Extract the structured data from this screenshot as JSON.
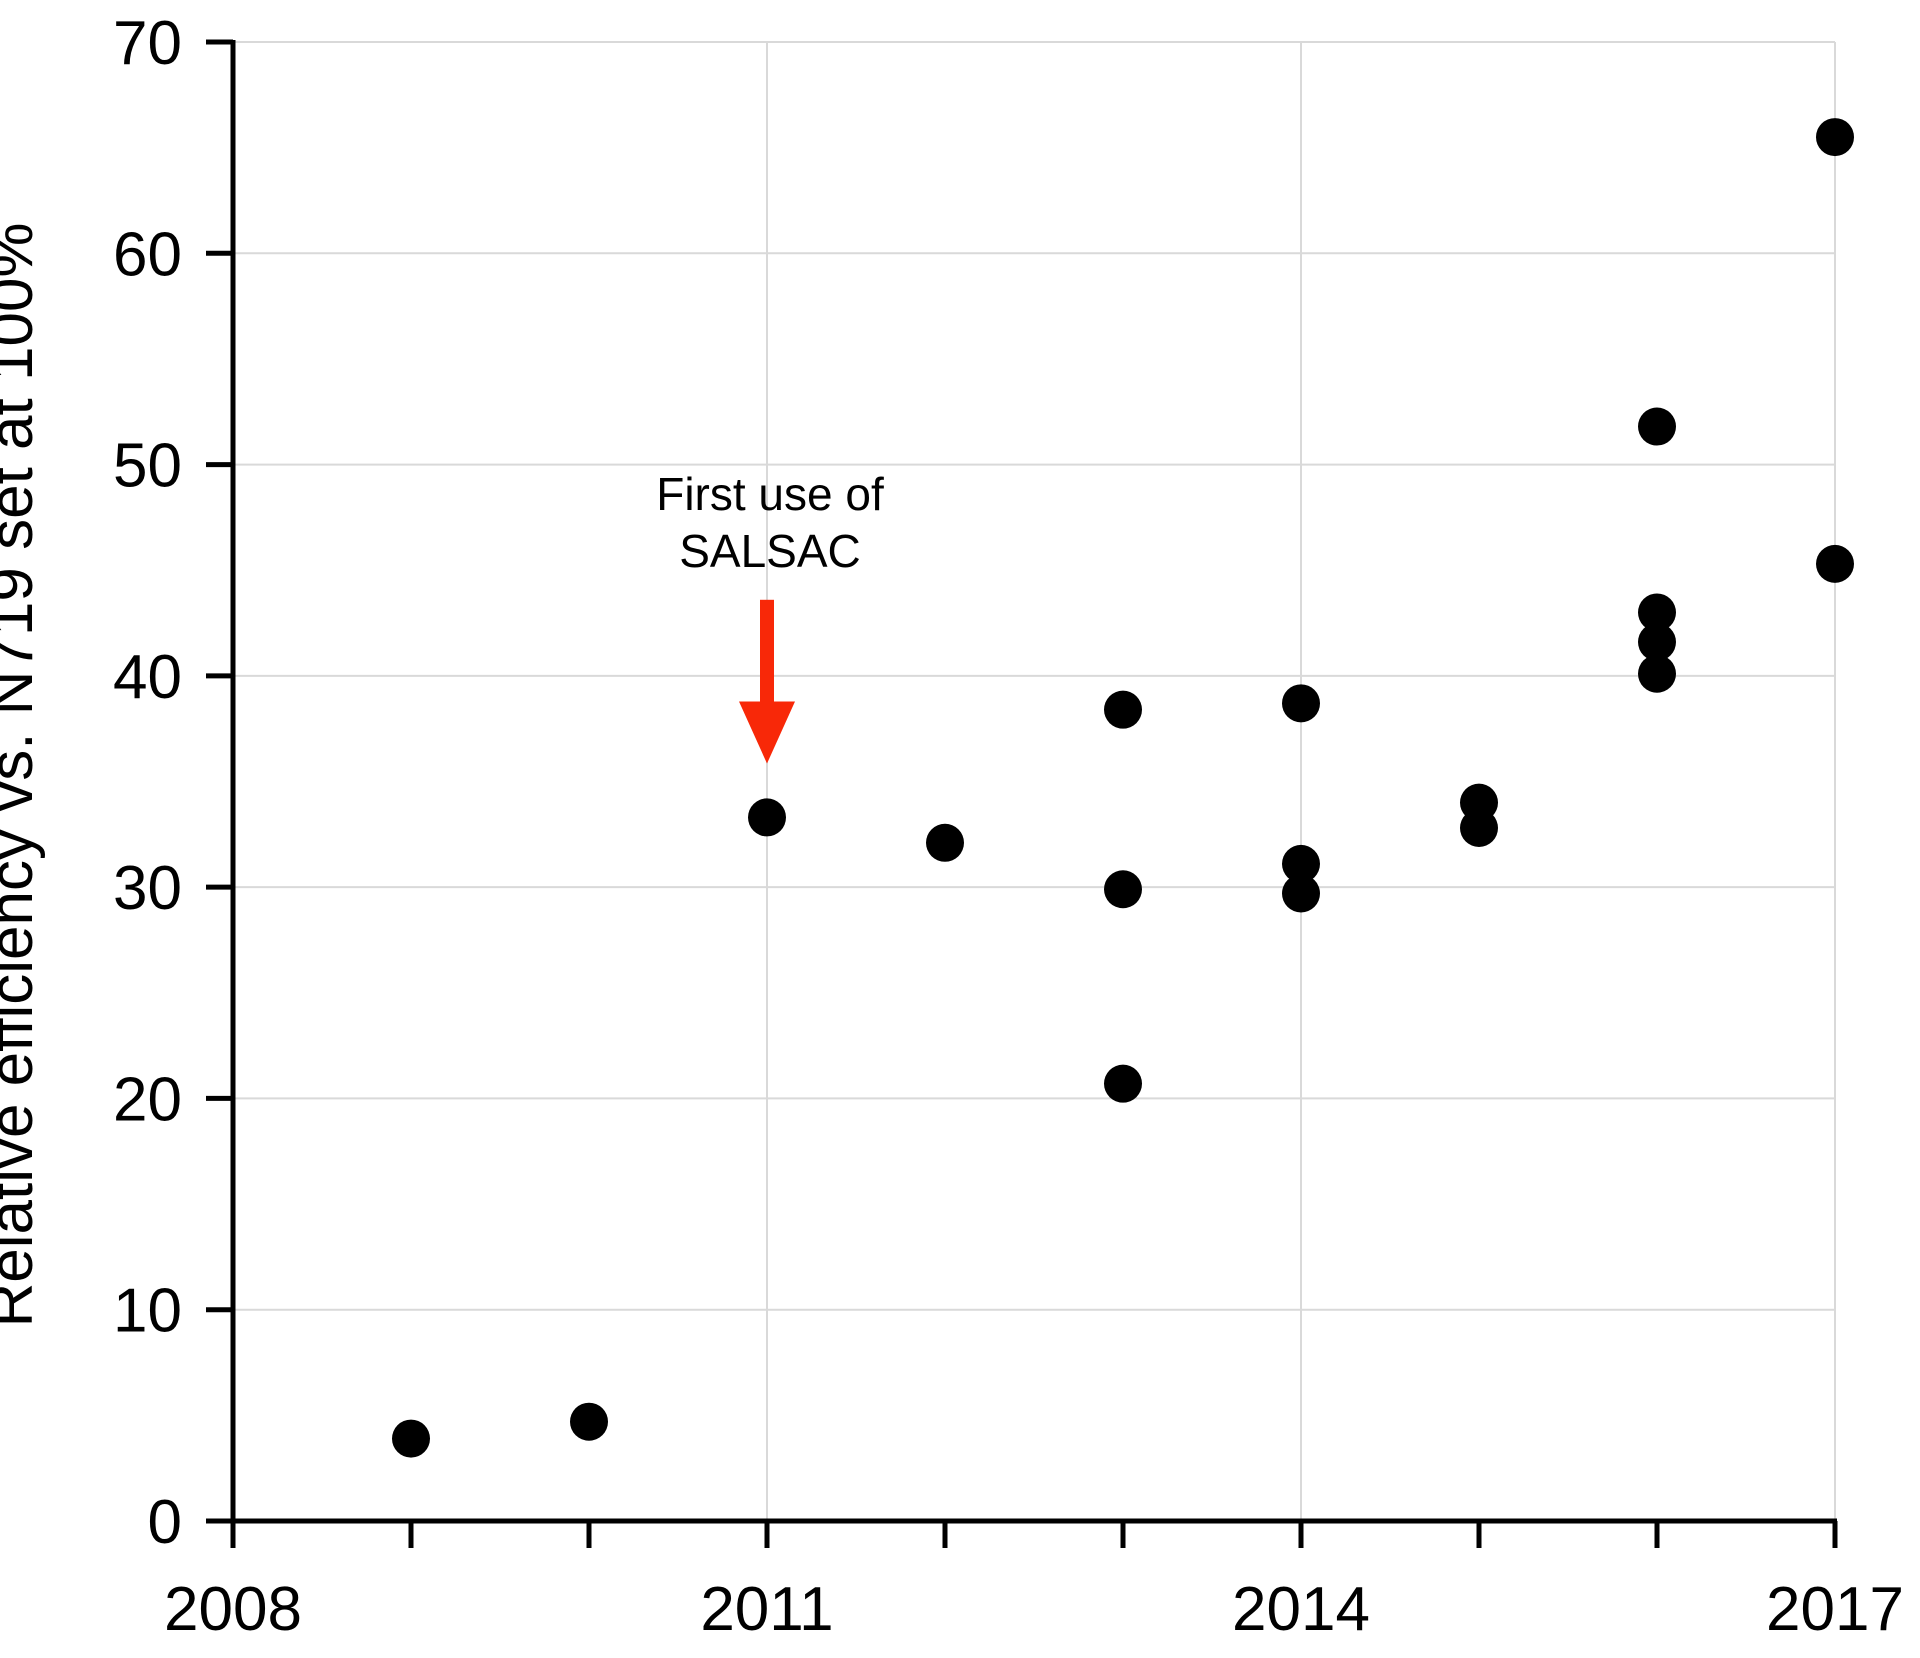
{
  "colors": {
    "background": "#ffffff",
    "grid": "#d9d9d9",
    "axis": "#000000",
    "point": "#000000",
    "annotation_red": "#f82808"
  },
  "chart_data": {
    "type": "scatter",
    "title": "",
    "xlabel": "",
    "ylabel": "Relative efficiency vs. N719 set at 100%",
    "xlim": [
      2008,
      2017
    ],
    "ylim": [
      0,
      70
    ],
    "grid": true,
    "legend": "none",
    "x_ticks": [
      2008,
      2009,
      2010,
      2011,
      2012,
      2013,
      2014,
      2015,
      2016,
      2017
    ],
    "x_tick_labels": [
      "2008",
      "2011",
      "2014",
      "2017"
    ],
    "x_tick_label_years": [
      2008,
      2011,
      2014,
      2017
    ],
    "x_gridlines": [
      2011,
      2014,
      2017
    ],
    "y_ticks": [
      0,
      10,
      20,
      30,
      40,
      50,
      60,
      70
    ],
    "y_tick_labels": [
      "0",
      "10",
      "20",
      "30",
      "40",
      "50",
      "60",
      "70"
    ],
    "y_gridlines": [
      10,
      20,
      30,
      40,
      50,
      60,
      70
    ],
    "points": [
      {
        "x": 2009,
        "y": 3.9
      },
      {
        "x": 2010,
        "y": 4.7
      },
      {
        "x": 2011,
        "y": 33.3
      },
      {
        "x": 2012,
        "y": 32.1
      },
      {
        "x": 2013,
        "y": 38.4
      },
      {
        "x": 2013,
        "y": 29.9
      },
      {
        "x": 2013,
        "y": 20.7
      },
      {
        "x": 2014,
        "y": 38.7
      },
      {
        "x": 2014,
        "y": 31.1
      },
      {
        "x": 2014,
        "y": 29.7
      },
      {
        "x": 2015,
        "y": 34.0
      },
      {
        "x": 2015,
        "y": 32.8
      },
      {
        "x": 2016,
        "y": 51.8
      },
      {
        "x": 2016,
        "y": 43.0
      },
      {
        "x": 2016,
        "y": 41.6
      },
      {
        "x": 2016,
        "y": 40.1
      },
      {
        "x": 2017,
        "y": 65.5
      },
      {
        "x": 2017,
        "y": 45.3
      }
    ],
    "annotation": {
      "lines": [
        "First use of",
        "SALSAC"
      ],
      "text_x": 2011,
      "text_line_y": [
        48.6,
        45.9
      ],
      "arrow_x": 2011,
      "arrow_tail_y": 43.6,
      "arrow_tip_y": 35.85,
      "color": "#f82808"
    }
  }
}
